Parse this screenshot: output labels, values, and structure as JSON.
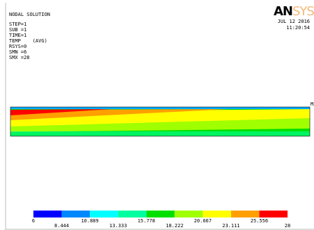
{
  "header": {
    "title": "NODAL SOLUTION",
    "lines": [
      "STEP=1",
      "SUB =1",
      "TIME=1",
      "TEMP    (AVG)",
      "RSYS=0",
      "SMN =6",
      "SMX =28"
    ]
  },
  "logo": {
    "black": "AN",
    "colored": "SYS"
  },
  "date": "JUL 12 2016",
  "time": "11:20:54",
  "marker": "MX",
  "legend": {
    "colors": [
      "#0000ff",
      "#0088ff",
      "#00ffff",
      "#00ffa0",
      "#00e000",
      "#a0ff00",
      "#ffff00",
      "#ffa000",
      "#ff0000"
    ],
    "labels": [
      "6",
      "8.444",
      "10.889",
      "13.333",
      "15.778",
      "18.222",
      "20.667",
      "23.111",
      "25.556",
      "28"
    ]
  }
}
